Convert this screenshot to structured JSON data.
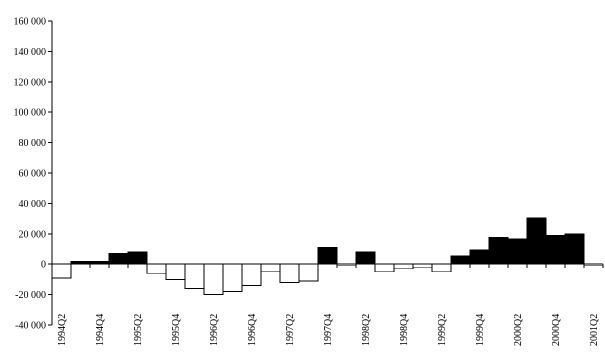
{
  "chart_data": {
    "type": "bar",
    "title": "",
    "xlabel": "",
    "ylabel": "",
    "ylim": [
      -40000,
      160000
    ],
    "y_ticks": [
      160000,
      140000,
      120000,
      100000,
      80000,
      60000,
      40000,
      20000,
      0,
      -20000,
      -40000
    ],
    "y_tick_labels": [
      "160 000",
      "140 000",
      "120 000",
      "100 000",
      "80 000",
      "60 000",
      "40 000",
      "20 000",
      "0",
      "-20 000",
      "-40 000"
    ],
    "grid": false,
    "legend": false,
    "colors": {
      "positive": "#000000",
      "negative": "#ffffff",
      "edge": "#000000"
    },
    "categories": [
      "1994Q2",
      "1994Q3",
      "1994Q4",
      "1995Q1",
      "1995Q2",
      "1995Q3",
      "1995Q4",
      "1996Q1",
      "1996Q2",
      "1996Q3",
      "1996Q4",
      "1997Q1",
      "1997Q2",
      "1997Q3",
      "1997Q4",
      "1998Q1",
      "1998Q2",
      "1998Q3",
      "1998Q4",
      "1999Q1",
      "1999Q2",
      "1999Q3",
      "1999Q4",
      "2000Q1",
      "2000Q2",
      "2000Q3",
      "2000Q4",
      "2001Q1",
      "2001Q2"
    ],
    "values": [
      -9000,
      2000,
      2000,
      7000,
      8000,
      -6000,
      -10000,
      -16000,
      -20000,
      -18000,
      -14000,
      -5000,
      -12000,
      -11000,
      11000,
      -1000,
      8000,
      -5000,
      -3000,
      -2000,
      -5000,
      5500,
      9500,
      17500,
      16500,
      30500,
      19000,
      20000,
      -1000
    ],
    "x_tick_labels": [
      {
        "index": 0,
        "label": "1994Q2"
      },
      {
        "index": 2,
        "label": "1994Q4"
      },
      {
        "index": 4,
        "label": "1995Q2"
      },
      {
        "index": 6,
        "label": "1995Q4"
      },
      {
        "index": 8,
        "label": "1996Q2"
      },
      {
        "index": 10,
        "label": "1996Q4"
      },
      {
        "index": 12,
        "label": "1997Q2"
      },
      {
        "index": 14,
        "label": "1997Q4"
      },
      {
        "index": 16,
        "label": "1998Q2"
      },
      {
        "index": 18,
        "label": "1998Q4"
      },
      {
        "index": 20,
        "label": "1999Q2"
      },
      {
        "index": 22,
        "label": "1999Q4"
      },
      {
        "index": 24,
        "label": "2000Q2"
      },
      {
        "index": 26,
        "label": "2000Q4"
      },
      {
        "index": 28,
        "label": "2001Q2"
      }
    ]
  }
}
